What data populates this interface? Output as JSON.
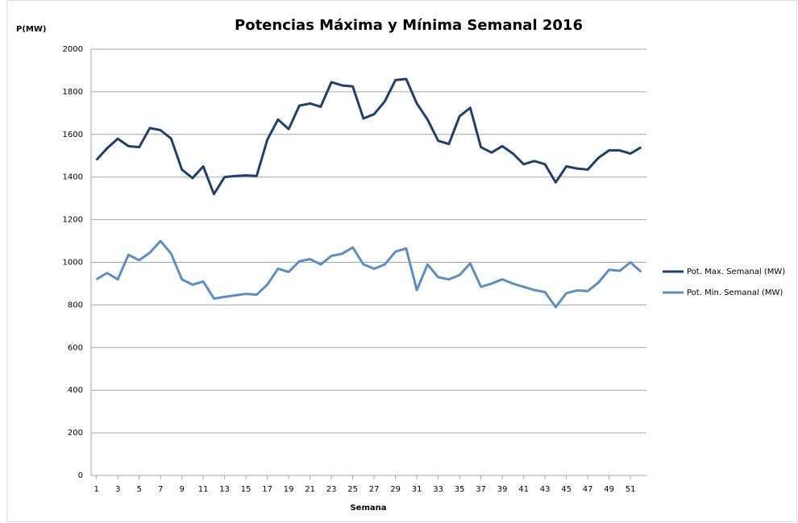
{
  "chart_data": {
    "type": "line",
    "title": "Potencias Máxima y Mínima Semanal 2016",
    "y_label": "P(MW)",
    "x_label": "Semana",
    "x": [
      1,
      2,
      3,
      4,
      5,
      6,
      7,
      8,
      9,
      10,
      11,
      12,
      13,
      14,
      15,
      16,
      17,
      18,
      19,
      20,
      21,
      22,
      23,
      24,
      25,
      26,
      27,
      28,
      29,
      30,
      31,
      32,
      33,
      34,
      35,
      36,
      37,
      38,
      39,
      40,
      41,
      42,
      43,
      44,
      45,
      46,
      47,
      48,
      49,
      50,
      51,
      52
    ],
    "xlim": [
      0.5,
      52.5
    ],
    "xticks": [
      1,
      3,
      5,
      7,
      9,
      11,
      13,
      15,
      17,
      19,
      21,
      23,
      25,
      27,
      29,
      31,
      33,
      35,
      37,
      39,
      41,
      43,
      45,
      47,
      49,
      51
    ],
    "ylim": [
      0,
      2000
    ],
    "yticks": [
      0,
      200,
      400,
      600,
      800,
      1000,
      1200,
      1400,
      1600,
      1800,
      2000
    ],
    "grid": true,
    "legend": "right",
    "series": [
      {
        "name": "Pot. Max. Semanal (MW)",
        "color": "#1f3f6e",
        "values": [
          1480,
          1535,
          1580,
          1545,
          1540,
          1630,
          1620,
          1580,
          1435,
          1395,
          1450,
          1320,
          1400,
          1405,
          1408,
          1405,
          1575,
          1670,
          1625,
          1735,
          1745,
          1730,
          1845,
          1830,
          1825,
          1675,
          1695,
          1755,
          1855,
          1860,
          1745,
          1670,
          1570,
          1555,
          1685,
          1725,
          1540,
          1515,
          1545,
          1510,
          1460,
          1475,
          1460,
          1375,
          1450,
          1440,
          1435,
          1490,
          1525,
          1525,
          1510,
          1540
        ]
      },
      {
        "name": "Pot. Min. Semanal (MW)",
        "color": "#5b8ec8",
        "values": [
          920,
          950,
          920,
          1035,
          1010,
          1045,
          1100,
          1040,
          920,
          895,
          910,
          830,
          838,
          845,
          852,
          848,
          895,
          970,
          955,
          1005,
          1015,
          990,
          1030,
          1040,
          1070,
          990,
          970,
          990,
          1050,
          1065,
          870,
          990,
          930,
          920,
          940,
          995,
          885,
          900,
          920,
          900,
          885,
          870,
          860,
          790,
          855,
          868,
          865,
          905,
          965,
          960,
          1000,
          955
        ]
      }
    ]
  }
}
